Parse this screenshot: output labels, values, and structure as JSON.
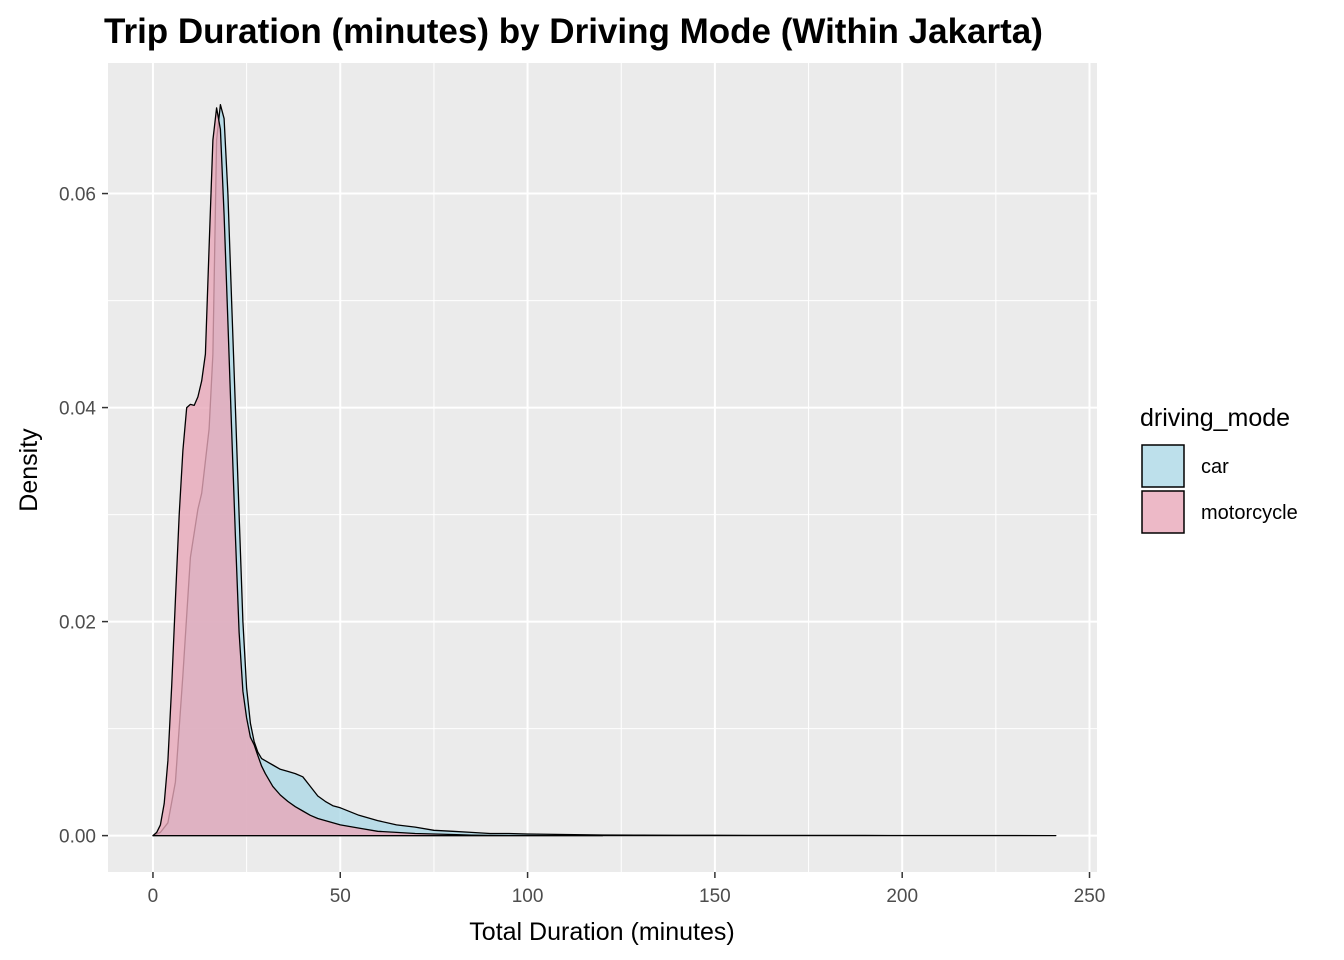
{
  "chart_data": {
    "type": "area",
    "subtype": "density",
    "title": "Trip Duration (minutes) by Driving Mode (Within Jakarta)",
    "xlabel": "Total Duration (minutes)",
    "ylabel": "Density",
    "xlim": [
      -12,
      252
    ],
    "ylim": [
      -0.0034,
      0.0722
    ],
    "x_ticks": [
      0,
      50,
      100,
      150,
      200,
      250
    ],
    "y_ticks": [
      0.0,
      0.02,
      0.04,
      0.06
    ],
    "x_tick_labels": [
      "0",
      "50",
      "100",
      "150",
      "200",
      "250"
    ],
    "y_tick_labels": [
      "0.00",
      "0.02",
      "0.04",
      "0.06"
    ],
    "grid": true,
    "panel_background": "#ebebeb",
    "grid_color": "#ffffff",
    "legend": {
      "title": "driving_mode",
      "position": "right",
      "entries": [
        "car",
        "motorcycle"
      ]
    },
    "series": [
      {
        "name": "car",
        "color": "#add8e6",
        "opacity": 0.8,
        "x": [
          0,
          2,
          4,
          6,
          8,
          10,
          12,
          13,
          14,
          15,
          16,
          17,
          18,
          19,
          20,
          21,
          22,
          23,
          24,
          25,
          26,
          27,
          28,
          29,
          30,
          32,
          34,
          36,
          38,
          40,
          42,
          44,
          46,
          48,
          50,
          55,
          60,
          65,
          70,
          75,
          80,
          85,
          90,
          95,
          100,
          110,
          120,
          130,
          140,
          150,
          160,
          170,
          180,
          190,
          200,
          210,
          220,
          230,
          241
        ],
        "values": [
          0.0,
          0.0003,
          0.0012,
          0.005,
          0.015,
          0.026,
          0.0305,
          0.032,
          0.035,
          0.038,
          0.045,
          0.065,
          0.0683,
          0.067,
          0.06,
          0.05,
          0.04,
          0.03,
          0.02,
          0.0138,
          0.0105,
          0.0088,
          0.0078,
          0.0072,
          0.007,
          0.0066,
          0.0062,
          0.006,
          0.0058,
          0.0055,
          0.0046,
          0.0037,
          0.0032,
          0.0028,
          0.0026,
          0.0019,
          0.0014,
          0.001,
          0.0008,
          0.0005,
          0.0004,
          0.0003,
          0.0002,
          0.0002,
          0.00015,
          0.0001,
          6e-05,
          4e-05,
          3e-05,
          3e-05,
          2e-05,
          2e-05,
          2e-05,
          2e-05,
          1e-05,
          1e-05,
          1e-05,
          1e-05,
          0.0
        ]
      },
      {
        "name": "motorcycle",
        "color": "#e8a8b9",
        "opacity": 0.8,
        "x": [
          0,
          1,
          2,
          3,
          4,
          5,
          6,
          7,
          8,
          9,
          10,
          11,
          12,
          13,
          14,
          15,
          16,
          17,
          18,
          19,
          20,
          21,
          22,
          23,
          24,
          25,
          26,
          27,
          28,
          29,
          30,
          32,
          34,
          36,
          38,
          40,
          42,
          44,
          46,
          48,
          50,
          55,
          60,
          65,
          70,
          75,
          80,
          85,
          90,
          95,
          100,
          110,
          120
        ],
        "values": [
          0.0,
          0.0003,
          0.001,
          0.003,
          0.007,
          0.014,
          0.022,
          0.03,
          0.036,
          0.04,
          0.0403,
          0.0402,
          0.041,
          0.0425,
          0.045,
          0.055,
          0.065,
          0.068,
          0.066,
          0.058,
          0.048,
          0.038,
          0.028,
          0.019,
          0.0135,
          0.011,
          0.0092,
          0.0085,
          0.0075,
          0.0065,
          0.0058,
          0.0046,
          0.0038,
          0.0032,
          0.0027,
          0.0023,
          0.0019,
          0.0016,
          0.0014,
          0.0012,
          0.001,
          0.0007,
          0.0004,
          0.0003,
          0.0002,
          0.00015,
          0.0001,
          5e-05,
          2e-05,
          1e-05,
          1e-05,
          0.0,
          0.0
        ]
      }
    ]
  }
}
